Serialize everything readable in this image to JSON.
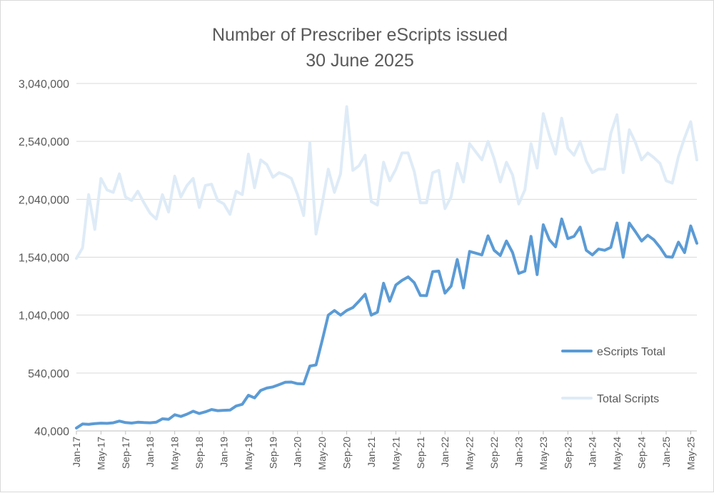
{
  "chart_data": {
    "type": "line",
    "title": [
      "Number of Prescriber eScripts issued",
      "30 June 2025"
    ],
    "ylim": [
      40000,
      3040000
    ],
    "yticks": [
      40000,
      540000,
      1040000,
      1540000,
      2040000,
      2540000,
      3040000
    ],
    "ytick_labels": [
      "40,000",
      "540,000",
      "1,040,000",
      "1,540,000",
      "2,040,000",
      "2,540,000",
      "3,040,000"
    ],
    "xtick_labels": [
      "Jan-17",
      "May-17",
      "Sep-17",
      "Jan-18",
      "May-18",
      "Sep-18",
      "Jan-19",
      "May-19",
      "Sep-19",
      "Jan-20",
      "May-20",
      "Sep-20",
      "Jan-21",
      "May-21",
      "Sep-21",
      "Jan-22",
      "May-22",
      "Sep-22",
      "Jan-23",
      "May-23",
      "Sep-23",
      "Jan-24",
      "May-24",
      "Sep-24",
      "Jan-25",
      "May-25"
    ],
    "x_start": "Jan-17",
    "x_end": "Jun-25",
    "grid": "horizontal",
    "legend_position": "right",
    "series": [
      {
        "name": "eScripts Total",
        "color": "#5b9bd5",
        "values": [
          65000,
          100000,
          97000,
          103000,
          107000,
          105000,
          110000,
          125000,
          112000,
          108000,
          115000,
          112000,
          110000,
          115000,
          145000,
          140000,
          180000,
          165000,
          185000,
          210000,
          190000,
          205000,
          225000,
          215000,
          218000,
          220000,
          255000,
          270000,
          348000,
          325000,
          390000,
          410000,
          420000,
          440000,
          460000,
          462000,
          448000,
          446000,
          600000,
          610000,
          820000,
          1040000,
          1080000,
          1040000,
          1080000,
          1105000,
          1160000,
          1220000,
          1040000,
          1065000,
          1315000,
          1160000,
          1300000,
          1340000,
          1370000,
          1320000,
          1210000,
          1208000,
          1415000,
          1420000,
          1230000,
          1290000,
          1520000,
          1275000,
          1590000,
          1575000,
          1560000,
          1725000,
          1600000,
          1555000,
          1680000,
          1580000,
          1400000,
          1420000,
          1720000,
          1390000,
          1820000,
          1690000,
          1630000,
          1870000,
          1700000,
          1720000,
          1800000,
          1600000,
          1560000,
          1610000,
          1600000,
          1625000,
          1835000,
          1540000,
          1835000,
          1760000,
          1680000,
          1730000,
          1690000,
          1625000,
          1545000,
          1540000,
          1670000,
          1580000,
          1810000,
          1660000
        ]
      },
      {
        "name": "Total Scripts",
        "color": "#deebf7",
        "values": [
          1530000,
          1620000,
          2080000,
          1780000,
          2220000,
          2120000,
          2100000,
          2260000,
          2060000,
          2030000,
          2110000,
          2010000,
          1920000,
          1870000,
          2080000,
          1930000,
          2240000,
          2060000,
          2160000,
          2220000,
          1970000,
          2160000,
          2170000,
          2030000,
          2000000,
          1910000,
          2110000,
          2080000,
          2430000,
          2140000,
          2380000,
          2340000,
          2230000,
          2270000,
          2250000,
          2220000,
          2080000,
          1900000,
          2530000,
          1740000,
          2000000,
          2300000,
          2100000,
          2260000,
          2840000,
          2290000,
          2330000,
          2420000,
          2020000,
          1990000,
          2360000,
          2200000,
          2300000,
          2440000,
          2440000,
          2280000,
          2010000,
          2010000,
          2270000,
          2290000,
          1960000,
          2060000,
          2350000,
          2190000,
          2520000,
          2450000,
          2380000,
          2540000,
          2390000,
          2190000,
          2360000,
          2250000,
          2000000,
          2120000,
          2520000,
          2310000,
          2780000,
          2590000,
          2430000,
          2740000,
          2480000,
          2420000,
          2540000,
          2370000,
          2270000,
          2300000,
          2300000,
          2610000,
          2770000,
          2270000,
          2640000,
          2530000,
          2380000,
          2440000,
          2400000,
          2350000,
          2200000,
          2180000,
          2410000,
          2570000,
          2710000,
          2380000
        ]
      }
    ]
  }
}
